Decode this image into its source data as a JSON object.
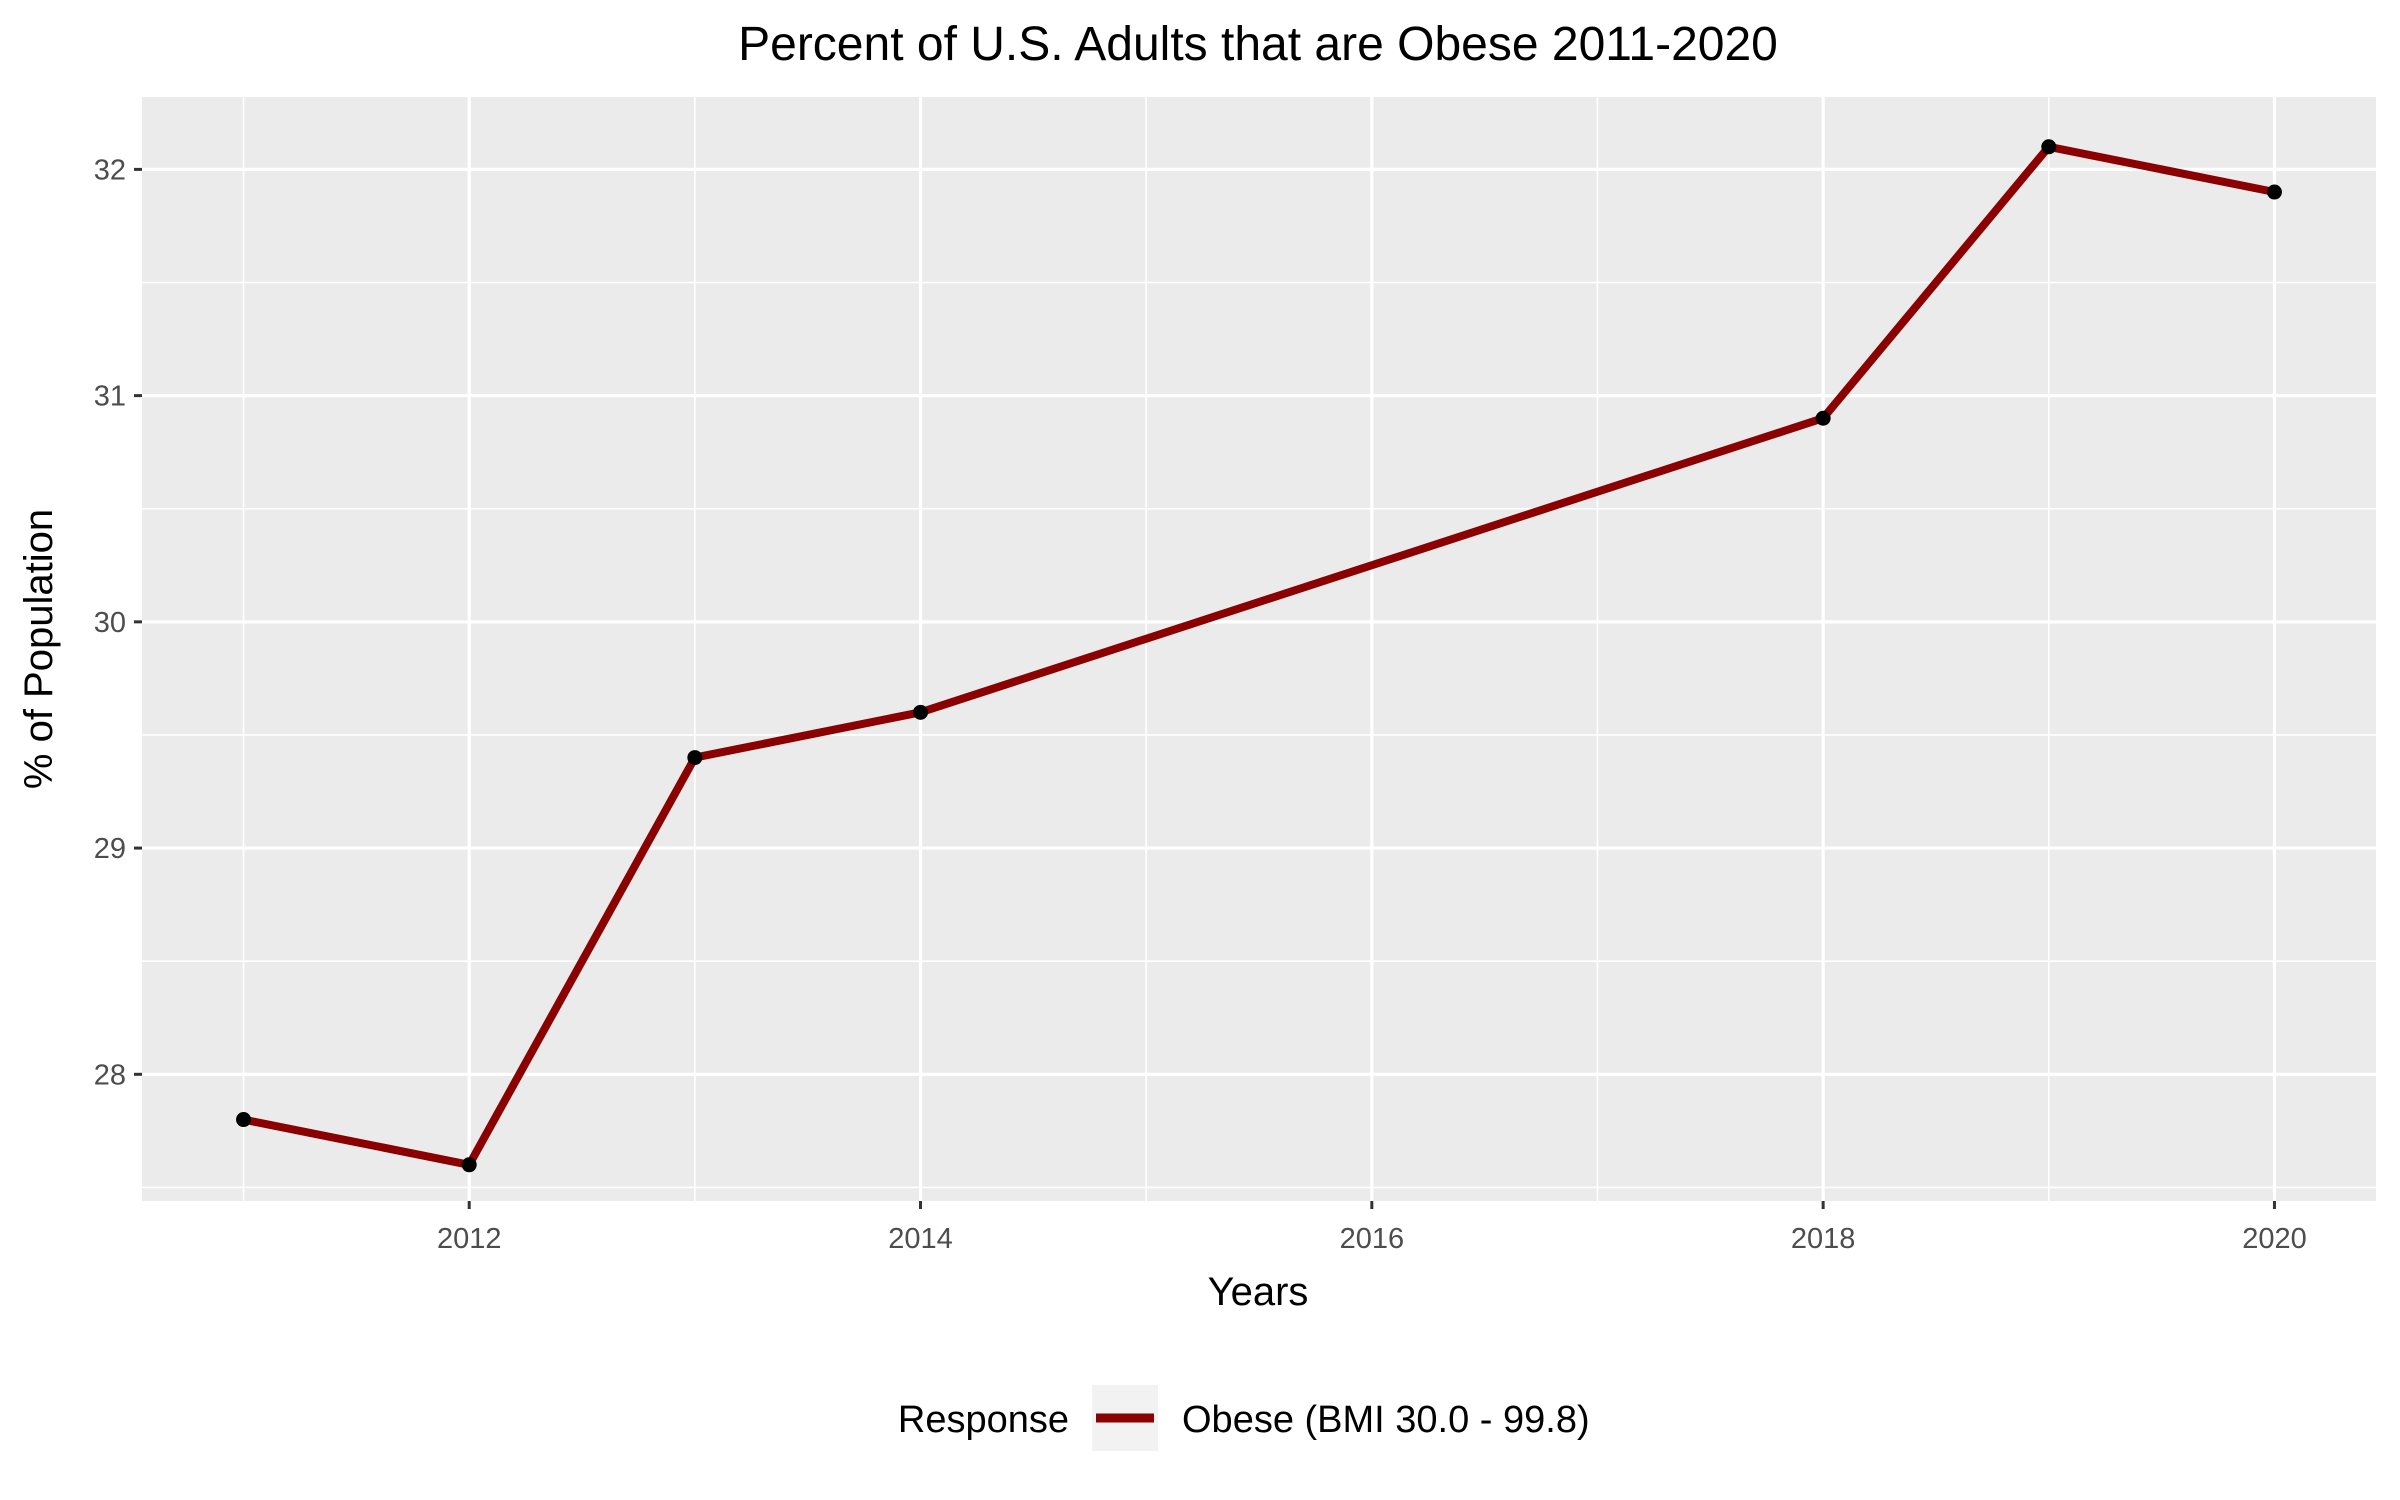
{
  "chart_data": {
    "type": "line",
    "title": "Percent of U.S. Adults that are Obese 2011-2020",
    "xlabel": "Years",
    "ylabel": "% of Population",
    "x": [
      2011,
      2012,
      2013,
      2014,
      2018,
      2019,
      2020
    ],
    "series": [
      {
        "name": "Obese (BMI 30.0 - 99.8)",
        "values": [
          27.8,
          27.6,
          29.4,
          29.6,
          30.9,
          32.1,
          31.9
        ],
        "color": "#8b0000"
      }
    ],
    "xlim": [
      2010.55,
      2020.45
    ],
    "ylim": [
      27.44,
      32.32
    ],
    "x_ticks": [
      2012,
      2014,
      2016,
      2018,
      2020
    ],
    "y_ticks": [
      28,
      29,
      30,
      31,
      32
    ],
    "x_tick_labels": [
      "2012",
      "2014",
      "2016",
      "2018",
      "2020"
    ],
    "y_tick_labels": [
      "28",
      "29",
      "30",
      "31",
      "32"
    ],
    "grid": true,
    "panel_background": "#ebebeb",
    "grid_color": "#ffffff",
    "point_color": "#000000",
    "legend": {
      "title": "Response",
      "position": "bottom",
      "entries": [
        "Obese (BMI 30.0 - 99.8)"
      ]
    }
  }
}
